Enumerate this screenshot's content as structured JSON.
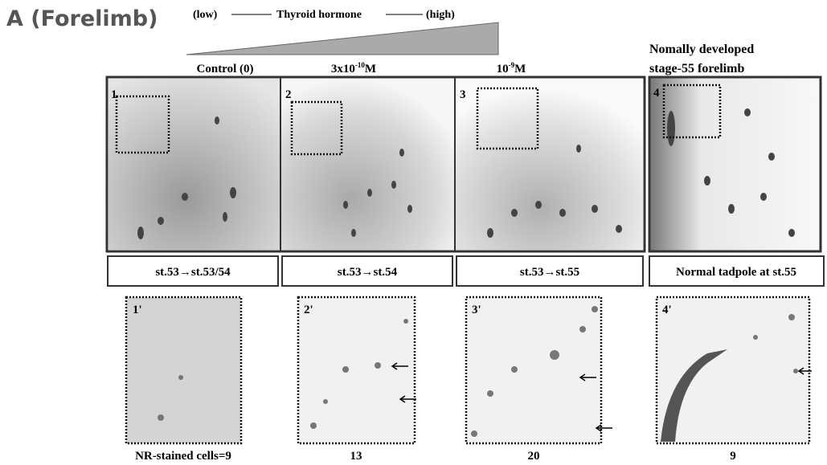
{
  "figure": {
    "panel_title": "A (Forelimb)",
    "gradient": {
      "low": "(low)",
      "label": "Thyroid hormone",
      "high": "(high)"
    },
    "columns": [
      {
        "header": {
          "text": "Control (0)"
        },
        "number": "1",
        "stage": "st.53→st.53/54",
        "inset": "1'",
        "count": "NR-stained cells=9"
      },
      {
        "header": {
          "base": "3x10",
          "exp": "-10",
          "unit": "M"
        },
        "number": "2",
        "stage": "st.53→st.54",
        "inset": "2'",
        "count": "13"
      },
      {
        "header": {
          "base": "10",
          "exp": "-9",
          "unit": "M"
        },
        "number": "3",
        "stage": "st.53→st.55",
        "inset": "3'",
        "count": "20"
      },
      {
        "header": {
          "line1": "Nomally developed",
          "line2": "stage-55 forelimb"
        },
        "number": "4",
        "stage": "Normal tadpole at st.55",
        "inset": "4'",
        "count": "9"
      }
    ]
  }
}
